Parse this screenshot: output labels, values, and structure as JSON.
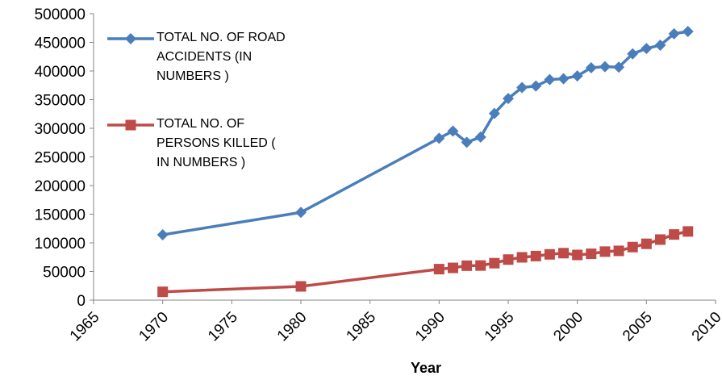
{
  "chart_data": {
    "type": "line",
    "x_label": "Year",
    "x": [
      1970,
      1980,
      1990,
      1991,
      1992,
      1993,
      1994,
      1995,
      1996,
      1997,
      1998,
      1999,
      2000,
      2001,
      2002,
      2003,
      2004,
      2005,
      2006,
      2007,
      2008
    ],
    "series": [
      {
        "name": "TOTAL NO. OF ROAD ACCIDENTS (IN NUMBERS )",
        "color": "#4a7ebb",
        "marker": "diamond",
        "values": [
          114100,
          153200,
          282600,
          295100,
          275500,
          284600,
          325900,
          352000,
          371200,
          373700,
          385000,
          386500,
          391400,
          405600,
          407500,
          406700,
          429900,
          439300,
          445000,
          465000,
          469000
        ]
      },
      {
        "name": "TOTAL NO. OF PERSONS KILLED ( IN NUMBERS )",
        "color": "#be4b48",
        "marker": "square",
        "values": [
          14500,
          24000,
          54100,
          56300,
          60100,
          60400,
          64500,
          70800,
          74700,
          76900,
          79900,
          82000,
          78900,
          80900,
          84700,
          86000,
          92600,
          98300,
          105700,
          114600,
          119900
        ]
      }
    ],
    "xlim": [
      1965,
      2010
    ],
    "xticks": [
      1965,
      1970,
      1975,
      1980,
      1985,
      1990,
      1995,
      2000,
      2005,
      2010
    ],
    "ylim": [
      0,
      500000
    ],
    "yticks": [
      0,
      50000,
      100000,
      150000,
      200000,
      250000,
      300000,
      350000,
      400000,
      450000,
      500000
    ],
    "grid": false,
    "legend": "upper left"
  }
}
